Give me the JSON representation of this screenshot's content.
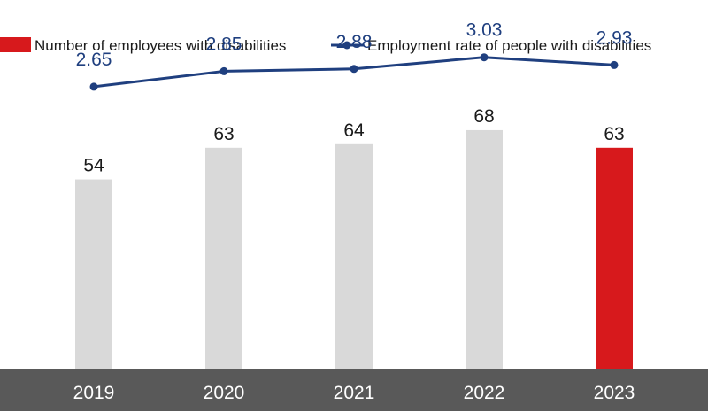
{
  "colors": {
    "bar_default": "#d9d9d9",
    "bar_highlight": "#d7191c",
    "line": "#1f3f7f",
    "axis_band": "#595959",
    "axis_text": "#ffffff",
    "value_text": "#1a1a1a",
    "rate_text": "#1f3f7f"
  },
  "chart_data": {
    "type": "bar",
    "categories": [
      "2019",
      "2020",
      "2021",
      "2022",
      "2023"
    ],
    "highlight_category": "2023",
    "legend_position": "top-left",
    "grid": false,
    "series": [
      {
        "name": "Number of employees with disabilities",
        "type": "bar",
        "values": [
          54,
          63,
          64,
          68,
          63
        ],
        "ylim": [
          0,
          105
        ]
      },
      {
        "name": "Employment rate of people with disabilities",
        "type": "line",
        "values": [
          2.65,
          2.85,
          2.88,
          3.03,
          2.93
        ],
        "value_labels": [
          "2.65",
          "2.85",
          "2.88",
          "3.03",
          "2.93"
        ],
        "ylim": [
          -1.0,
          3.77
        ]
      }
    ]
  }
}
